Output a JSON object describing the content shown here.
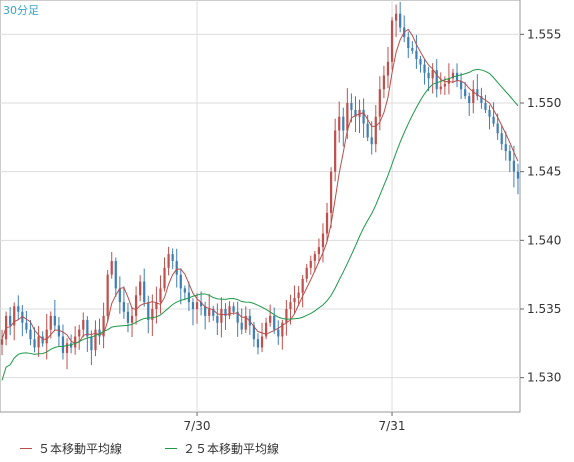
{
  "chart_data": {
    "type": "candlestick",
    "timeframe_label": "30分足",
    "y_ticks": [
      "1.555",
      "1.550",
      "1.545",
      "1.540",
      "1.535",
      "1.530"
    ],
    "y_tick_values": [
      1.555,
      1.55,
      1.545,
      1.54,
      1.535,
      1.53
    ],
    "ylim": [
      1.5275,
      1.5575
    ],
    "x_ticks": [
      {
        "label": "7/30",
        "index": 48
      },
      {
        "label": "7/31",
        "index": 96
      }
    ],
    "bar_count": 128,
    "colors": {
      "up": "#c0504d",
      "down": "#3f7fb5",
      "ma5": "#b5504a",
      "ma25": "#1f9a4a",
      "grid": "#dddddd",
      "axis": "#666666"
    },
    "path": [
      1.5328,
      1.5345,
      1.5338,
      1.5352,
      1.5348,
      1.534,
      1.5335,
      1.5328,
      1.5322,
      1.533,
      1.5325,
      1.5335,
      1.5345,
      1.5338,
      1.533,
      1.5318,
      1.5325,
      1.5322,
      1.533,
      1.5335,
      1.5342,
      1.533,
      1.532,
      1.5335,
      1.533,
      1.5345,
      1.5375,
      1.5385,
      1.5365,
      1.5355,
      1.5348,
      1.534,
      1.5345,
      1.536,
      1.537,
      1.5355,
      1.5342,
      1.535,
      1.5355,
      1.5365,
      1.538,
      1.539,
      1.5385,
      1.5375,
      1.5365,
      1.5362,
      1.5355,
      1.535,
      1.5355,
      1.5352,
      1.5345,
      1.535,
      1.5345,
      1.534,
      1.535,
      1.5345,
      1.5352,
      1.5348,
      1.534,
      1.5335,
      1.5345,
      1.5338,
      1.5328,
      1.5322,
      1.533,
      1.534,
      1.5345,
      1.5335,
      1.533,
      1.534,
      1.535,
      1.5355,
      1.5358,
      1.5362,
      1.5372,
      1.538,
      1.5385,
      1.539,
      1.5395,
      1.5405,
      1.542,
      1.545,
      1.548,
      1.549,
      1.548,
      1.55,
      1.5495,
      1.549,
      1.5495,
      1.5485,
      1.5475,
      1.547,
      1.549,
      1.551,
      1.552,
      1.553,
      1.556,
      1.5565,
      1.5555,
      1.5548,
      1.554,
      1.5538,
      1.5532,
      1.5528,
      1.5522,
      1.5518,
      1.5524,
      1.551,
      1.5512,
      1.5514,
      1.5518,
      1.5522,
      1.5516,
      1.551,
      1.5505,
      1.55,
      1.551,
      1.5505,
      1.55,
      1.5495,
      1.549,
      1.5485,
      1.5478,
      1.547,
      1.5465,
      1.5458,
      1.545,
      1.5445
    ],
    "series": [
      {
        "name": "５本移動平均線",
        "kind": "ma",
        "period": 5
      },
      {
        "name": "２５本移動平均線",
        "kind": "ma",
        "period": 25
      }
    ]
  }
}
